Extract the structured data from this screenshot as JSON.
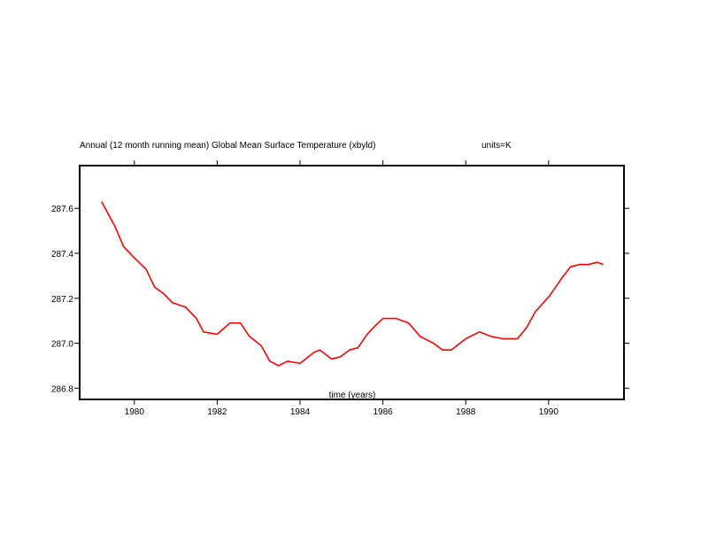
{
  "chart_data": {
    "type": "line",
    "title": "Annual (12 month running mean) Global Mean Surface Temperature (xbyld)",
    "units_label": "units=K",
    "xlabel": "time (years)",
    "ylabel": "",
    "xlim": [
      1978.68,
      1991.82
    ],
    "ylim": [
      286.75,
      287.79
    ],
    "xticks": [
      1980,
      1982,
      1984,
      1986,
      1988,
      1990
    ],
    "xtick_labels": [
      "1980",
      "1982",
      "1984",
      "1986",
      "1988",
      "1990"
    ],
    "yticks": [
      286.8,
      287.0,
      287.2,
      287.4,
      287.6
    ],
    "ytick_labels": [
      "286.8",
      "287.0",
      "287.2",
      "287.4",
      "287.6"
    ],
    "grid": false,
    "series": [
      {
        "name": "Global Mean Surface Temperature",
        "color": "#ff0000",
        "x": [
          1979.21,
          1979.53,
          1979.74,
          1980.0,
          1980.28,
          1980.49,
          1980.71,
          1980.92,
          1981.24,
          1981.5,
          1981.67,
          1982.0,
          1982.31,
          1982.56,
          1982.78,
          1983.06,
          1983.27,
          1983.48,
          1983.7,
          1984.0,
          1984.34,
          1984.48,
          1984.76,
          1984.98,
          1985.19,
          1985.4,
          1985.62,
          1985.83,
          1986.0,
          1986.32,
          1986.62,
          1986.9,
          1987.22,
          1987.44,
          1987.65,
          1988.0,
          1988.33,
          1988.61,
          1988.89,
          1989.25,
          1989.47,
          1989.68,
          1990.02,
          1990.32,
          1990.53,
          1990.75,
          1990.96,
          1991.18,
          1991.32
        ],
        "y": [
          287.63,
          287.52,
          287.43,
          287.38,
          287.33,
          287.25,
          287.22,
          287.18,
          287.16,
          287.11,
          287.05,
          287.04,
          287.09,
          287.09,
          287.03,
          286.99,
          286.92,
          286.9,
          286.92,
          286.91,
          286.96,
          286.97,
          286.93,
          286.94,
          286.97,
          286.98,
          287.04,
          287.08,
          287.11,
          287.11,
          287.09,
          287.03,
          287.0,
          286.97,
          286.97,
          287.02,
          287.05,
          287.03,
          287.02,
          287.02,
          287.07,
          287.14,
          287.21,
          287.29,
          287.34,
          287.35,
          287.35,
          287.36,
          287.35
        ]
      }
    ]
  }
}
